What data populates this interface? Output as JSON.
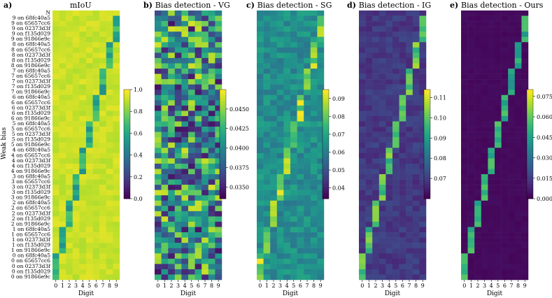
{
  "figure": {
    "y_axis_label": "Weak bias",
    "x_axis_label": "Digit",
    "x_ticks": [
      "0",
      "1",
      "2",
      "3",
      "4",
      "5",
      "6",
      "7",
      "8",
      "9"
    ],
    "row_labels": [
      "N",
      "9 on 68fc40a5",
      "9 on 65657cc6",
      "9 on 02373d3f",
      "9 on f135d029",
      "9 on 91866e9c",
      "8 on 68fc40a5",
      "8 on 65657cc6",
      "8 on 02373d3f",
      "8 on f135d029",
      "8 on 91866e9c",
      "7 on 68fc40a5",
      "7 on 65657cc6",
      "7 on 02373d3f",
      "7 on f135d029",
      "7 on 91866e9c",
      "6 on 68fc40a5",
      "6 on 65657cc6",
      "6 on 02373d3f",
      "6 on f135d029",
      "6 on 91866e9c",
      "5 on 68fc40a5",
      "5 on 65657cc6",
      "5 on 02373d3f",
      "5 on f135d029",
      "5 on 91866e9c",
      "4 on 68fc40a5",
      "4 on 65657cc6",
      "4 on 02373d3f",
      "4 on f135d029",
      "4 on 91866e9c",
      "3 on 68fc40a5",
      "3 on 65657cc6",
      "3 on 02373d3f",
      "3 on f135d029",
      "3 on 91866e9c",
      "2 on 68fc40a5",
      "2 on 65657cc6",
      "2 on 02373d3f",
      "2 on f135d029",
      "2 on 91866e9c",
      "1 on 68fc40a5",
      "1 on 65657cc6",
      "1 on 02373d3f",
      "1 on f135d029",
      "1 on 91866e9c",
      "0 on 68fc40a5",
      "0 on 65657cc6",
      "0 on 02373d3f",
      "0 on f135d029",
      "0 on 91866e9c"
    ]
  },
  "chart_data": [
    {
      "type": "heatmap",
      "id": "miou",
      "panel_letter": "a)",
      "title": "mIoU",
      "colormap": "viridis",
      "vmin": 0.0,
      "vmax": 1.0,
      "colorbar_ticks": [
        "1.0",
        "0.8",
        "0.6",
        "0.4",
        "0.2",
        "0.0"
      ],
      "colorbar_tick_values": [
        1.0,
        0.8,
        0.6,
        0.4,
        0.2,
        0.0
      ],
      "pattern": "high values overall (~0.9); on-diagonal digit columns for each bias group are lower (~0.5-0.75)",
      "base": 0.92,
      "diag": 0.62,
      "noise": 0.04
    },
    {
      "type": "heatmap",
      "id": "vg",
      "panel_letter": "b)",
      "title": "Bias detection - VG",
      "colormap": "viridis",
      "vmin": 0.0335,
      "vmax": 0.0475,
      "colorbar_ticks": [
        "0.0450",
        "0.0425",
        "0.0400",
        "0.0375",
        "0.0350"
      ],
      "colorbar_tick_values": [
        0.045,
        0.0425,
        0.04,
        0.0375,
        0.035
      ],
      "pattern": "noisy values between 0.034 and 0.047 with no clear diagonal",
      "base": 0.0405,
      "diag": 0.0405,
      "noise": 0.0035
    },
    {
      "type": "heatmap",
      "id": "sg",
      "panel_letter": "c)",
      "title": "Bias detection - SG",
      "colormap": "viridis",
      "vmin": 0.034,
      "vmax": 0.095,
      "colorbar_ticks": [
        "0.09",
        "0.08",
        "0.07",
        "0.06",
        "0.05",
        "0.04"
      ],
      "colorbar_tick_values": [
        0.09,
        0.08,
        0.07,
        0.06,
        0.05,
        0.04
      ],
      "pattern": "mostly ~0.06-0.07 with weak diagonal highlights",
      "base": 0.064,
      "diag": 0.08,
      "noise": 0.006
    },
    {
      "type": "heatmap",
      "id": "ig",
      "panel_letter": "d)",
      "title": "Bias detection - IG",
      "colormap": "viridis",
      "vmin": 0.06,
      "vmax": 0.114,
      "colorbar_ticks": [
        "0.11",
        "0.10",
        "0.09",
        "0.08",
        "0.07"
      ],
      "colorbar_tick_values": [
        0.11,
        0.1,
        0.09,
        0.08,
        0.07
      ],
      "pattern": "low background (~0.07) with a clear diagonal (~0.09-0.11)",
      "base": 0.069,
      "diag": 0.098,
      "noise": 0.003
    },
    {
      "type": "heatmap",
      "id": "ours",
      "panel_letter": "e)",
      "title": "Bias detection - Ours",
      "colormap": "viridis",
      "vmin": 0.0,
      "vmax": 0.08,
      "colorbar_ticks": [
        "0.075",
        "0.060",
        "0.045",
        "0.030",
        "0.015",
        "0.000"
      ],
      "colorbar_tick_values": [
        0.075,
        0.06,
        0.045,
        0.03,
        0.015,
        0.0
      ],
      "pattern": "near-zero background with a sharp diagonal (~0.03-0.08)",
      "base": 0.002,
      "diag": 0.045,
      "noise": 0.0008
    }
  ]
}
